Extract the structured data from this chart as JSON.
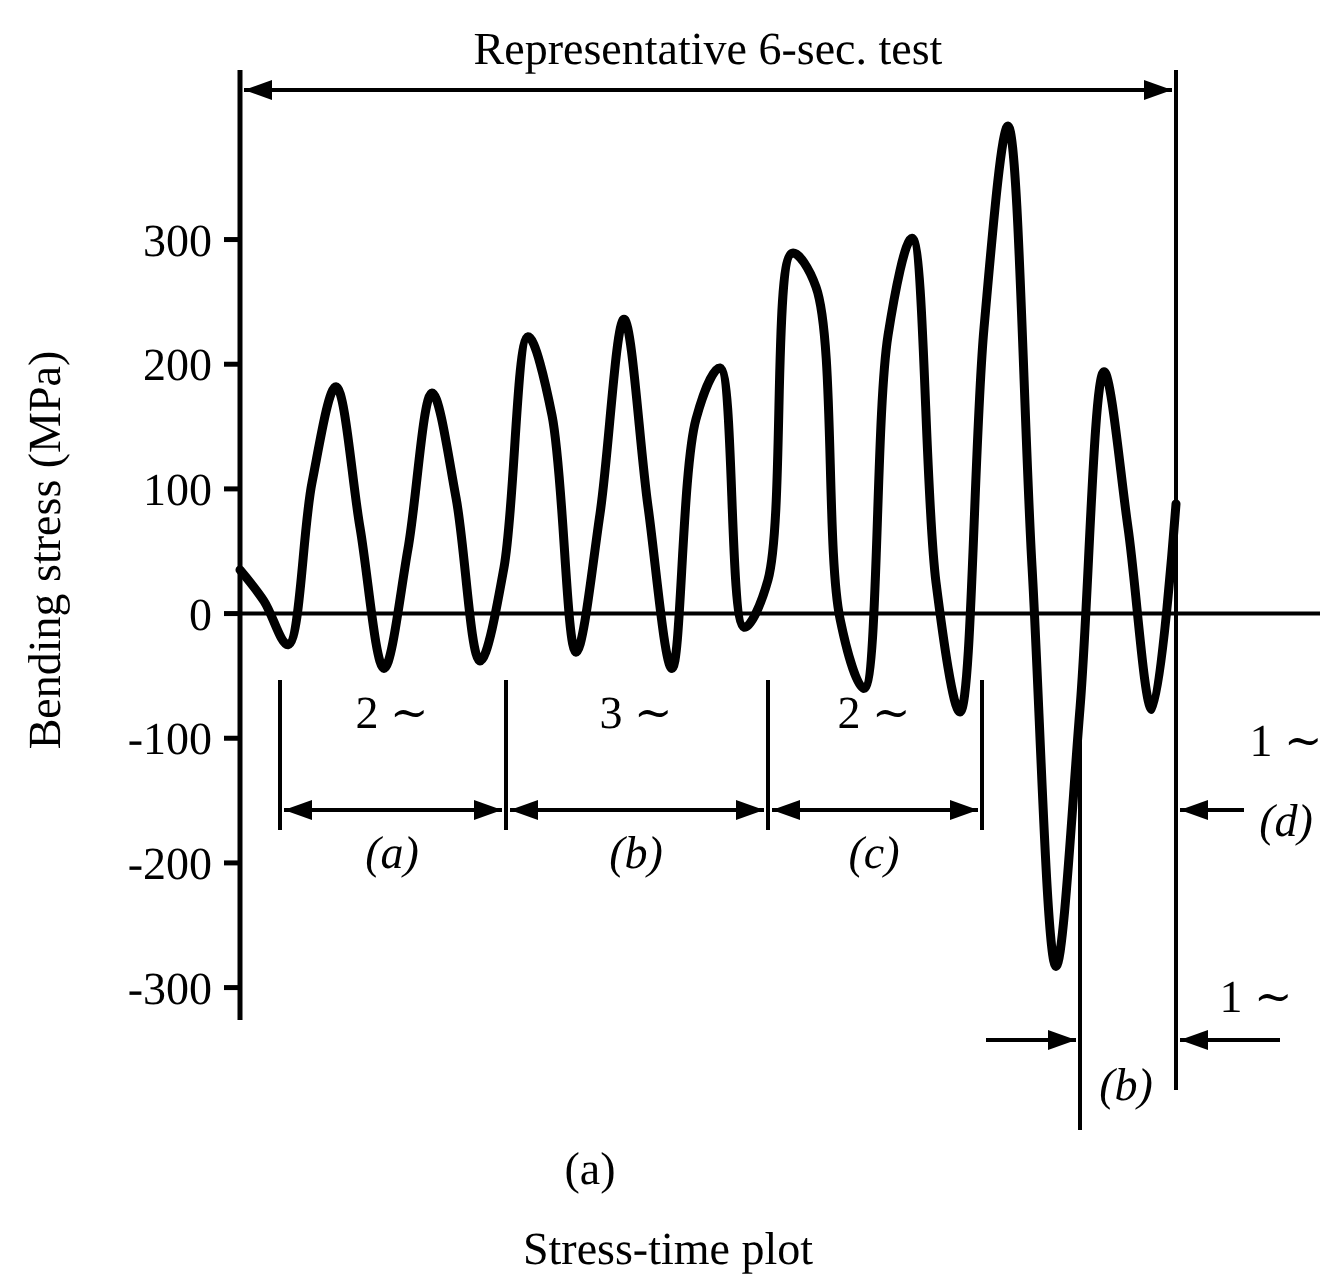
{
  "chart_data": {
    "type": "line",
    "ylabel": "Bending stress (MPa)",
    "categories": [
      null,
      null,
      null,
      null,
      null,
      null,
      null,
      null,
      null,
      null,
      null,
      null,
      null,
      null,
      null,
      null,
      null,
      null,
      null,
      null,
      null,
      null,
      null,
      null,
      null,
      null,
      null,
      null,
      null,
      null,
      null,
      null,
      null,
      null,
      null,
      null,
      null,
      null,
      null,
      null
    ],
    "series": [
      {
        "color": "#000000",
        "values": [
          35,
          10,
          -25,
          105,
          182,
          69,
          -44,
          52,
          177,
          93,
          -38,
          37,
          222,
          159,
          -31,
          80,
          236,
          86,
          -44,
          156,
          197,
          -11,
          27,
          289,
          262,
          -4,
          -60,
          223,
          301,
          25,
          -79,
          229,
          391,
          38,
          -283,
          -76,
          194,
          69,
          -77,
          88
        ]
      }
    ],
    "ylim": [
      -326,
      436
    ],
    "yticks": [
      -300,
      -200,
      -100,
      0,
      100,
      200,
      300
    ],
    "tick_labels": "y",
    "marker": "none",
    "line_style": "solid",
    "ref_lines": [
      {
        "axis": "y",
        "value": 0,
        "color": "#000000"
      }
    ],
    "annotations": [
      "Representative 6-sec. test",
      "2 ∼",
      "(a)",
      "3 ∼",
      "(b)",
      "2 ∼",
      "(c)",
      "1 ∼",
      "(d)",
      "1 ∼",
      "(b)",
      "(a)",
      "Stress-time plot"
    ]
  }
}
